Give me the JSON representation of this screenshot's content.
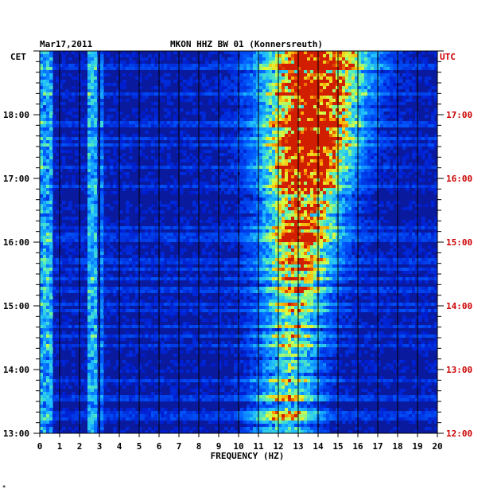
{
  "chart_data": {
    "type": "heatmap",
    "date": "Mar17,2011",
    "title": "MKON HHZ BW 01 (Konnersreuth)",
    "xlabel": "FREQUENCY (HZ)",
    "xlim": [
      0,
      20
    ],
    "x_ticks": [
      "0",
      "1",
      "2",
      "3",
      "4",
      "5",
      "6",
      "7",
      "8",
      "9",
      "10",
      "11",
      "12",
      "13",
      "14",
      "15",
      "16",
      "17",
      "18",
      "19",
      "20"
    ],
    "left_axis_title": "CET",
    "left_ticks": [
      "13:00",
      "14:00",
      "15:00",
      "16:00",
      "17:00",
      "18:00"
    ],
    "right_axis_title": "UTC",
    "right_ticks": [
      "12:00",
      "13:00",
      "14:00",
      "15:00",
      "16:00",
      "17:00"
    ],
    "colors": {
      "background": "#0a1a9e",
      "low": "#0000b4",
      "mid": "#1eb4ff",
      "high": "#ffff32",
      "peak": "#d21e00",
      "utc_text": "#cc0000"
    },
    "energy_bands": [
      {
        "hz_from": 11.0,
        "hz_to": 15.5,
        "description": "dominant noise band, strongest at 12-14 Hz between 16:00 and 18:30 CET"
      },
      {
        "hz_from": 2.4,
        "hz_to": 2.7,
        "description": "narrow persistent line"
      },
      {
        "hz_from": 0.0,
        "hz_to": 0.6,
        "description": "low-frequency energy"
      }
    ]
  },
  "footnote": "*"
}
